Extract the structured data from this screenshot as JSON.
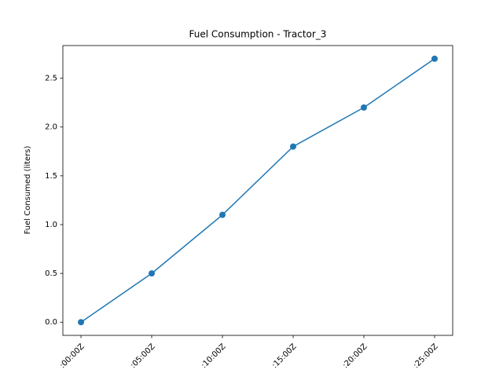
{
  "chart_data": {
    "type": "line",
    "title": "Fuel Consumption - Tractor_3",
    "y_label": "Fuel Consumed (liters)",
    "categories": [
      ":00:00Z",
      ":05:00Z",
      ":10:00Z",
      ":15:00Z",
      ":20:00Z",
      ":25:00Z"
    ],
    "series": [
      {
        "name": "Tractor_3",
        "color": "#1f77b4",
        "values": [
          0.0,
          0.5,
          1.1,
          1.8,
          2.2,
          2.7
        ]
      }
    ],
    "ylim": [
      -0.135,
      2.835
    ],
    "yticks": [
      {
        "value": 0,
        "label": "0.0"
      },
      0.5,
      {
        "value": 1,
        "label": "1.0"
      },
      1.5,
      {
        "value": 2,
        "label": "2.0"
      },
      2.5
    ],
    "grid": false
  }
}
